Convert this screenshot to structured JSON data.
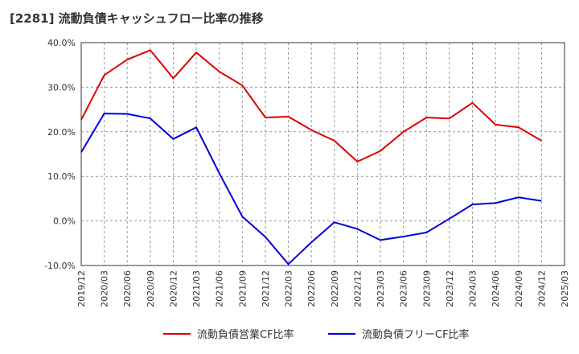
{
  "chart_data": {
    "type": "line",
    "title": "[2281]  流動負債キャッシュフロー比率の推移",
    "xlabel": "",
    "ylabel": "",
    "ylim": [
      -10,
      40
    ],
    "y_ticks": [
      "40.0%",
      "30.0%",
      "20.0%",
      "10.0%",
      "0.0%",
      "-10.0%"
    ],
    "y_tick_values": [
      40,
      30,
      20,
      10,
      0,
      -10
    ],
    "x_ticks": [
      "2019/12",
      "2020/03",
      "2020/06",
      "2020/09",
      "2020/12",
      "2021/03",
      "2021/06",
      "2021/09",
      "2021/12",
      "2022/03",
      "2022/06",
      "2022/09",
      "2022/12",
      "2023/03",
      "2023/06",
      "2023/09",
      "2023/12",
      "2024/03",
      "2024/06",
      "2024/09",
      "2024/12",
      "2025/03"
    ],
    "grid": true,
    "legend_position": "bottom",
    "series": [
      {
        "name": "流動負債営業CF比率",
        "color": "#dd0000",
        "points": [
          [
            "2019/12",
            22.7
          ],
          [
            "2020/03",
            32.7
          ],
          [
            "2020/06",
            36.2
          ],
          [
            "2020/09",
            38.3
          ],
          [
            "2020/12",
            32.0
          ],
          [
            "2021/03",
            37.8
          ],
          [
            "2021/06",
            33.5
          ],
          [
            "2021/09",
            30.4
          ],
          [
            "2021/12",
            23.2
          ],
          [
            "2022/03",
            23.4
          ],
          [
            "2022/06",
            20.4
          ],
          [
            "2022/09",
            18.0
          ],
          [
            "2022/12",
            13.3
          ],
          [
            "2023/03",
            15.7
          ],
          [
            "2023/06",
            20.0
          ],
          [
            "2023/09",
            23.2
          ],
          [
            "2023/12",
            23.0
          ],
          [
            "2024/03",
            26.5
          ],
          [
            "2024/06",
            21.6
          ],
          [
            "2024/09",
            21.0
          ],
          [
            "2024/12",
            18.0
          ]
        ]
      },
      {
        "name": "流動負債フリーCF比率",
        "color": "#0000dd",
        "points": [
          [
            "2019/12",
            15.4
          ],
          [
            "2020/03",
            24.1
          ],
          [
            "2020/06",
            24.0
          ],
          [
            "2020/09",
            23.0
          ],
          [
            "2020/12",
            18.4
          ],
          [
            "2021/03",
            21.0
          ],
          [
            "2021/06",
            10.7
          ],
          [
            "2021/09",
            1.0
          ],
          [
            "2021/12",
            -3.6
          ],
          [
            "2022/03",
            -9.7
          ],
          [
            "2022/06",
            -4.8
          ],
          [
            "2022/09",
            -0.3
          ],
          [
            "2022/12",
            -1.8
          ],
          [
            "2023/03",
            -4.3
          ],
          [
            "2023/06",
            -3.5
          ],
          [
            "2023/09",
            -2.6
          ],
          [
            "2023/12",
            0.5
          ],
          [
            "2024/03",
            3.7
          ],
          [
            "2024/06",
            4.0
          ],
          [
            "2024/09",
            5.3
          ],
          [
            "2024/12",
            4.5
          ]
        ]
      }
    ]
  }
}
